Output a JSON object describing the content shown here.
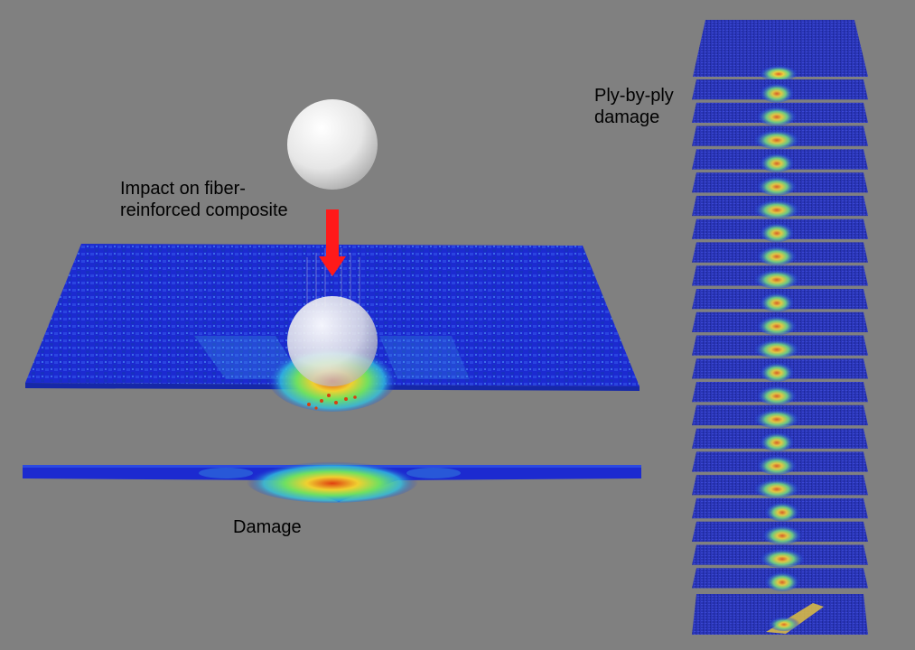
{
  "labels": {
    "impact_line1": "Impact on fiber-",
    "impact_line2": "reinforced composite",
    "damage": "Damage",
    "ply_line1": "Ply-by-ply",
    "ply_line2": "damage"
  },
  "colors": {
    "background": "#808080",
    "undamaged": "#1f2fd0",
    "low_damage": "#33c8e0",
    "mid_damage": "#7ce05a",
    "high_damage": "#f0e030",
    "max_damage": "#d83a10",
    "arrow": "#ff1a1a",
    "sphere": "#f0f0f0"
  },
  "ply_count": 24
}
